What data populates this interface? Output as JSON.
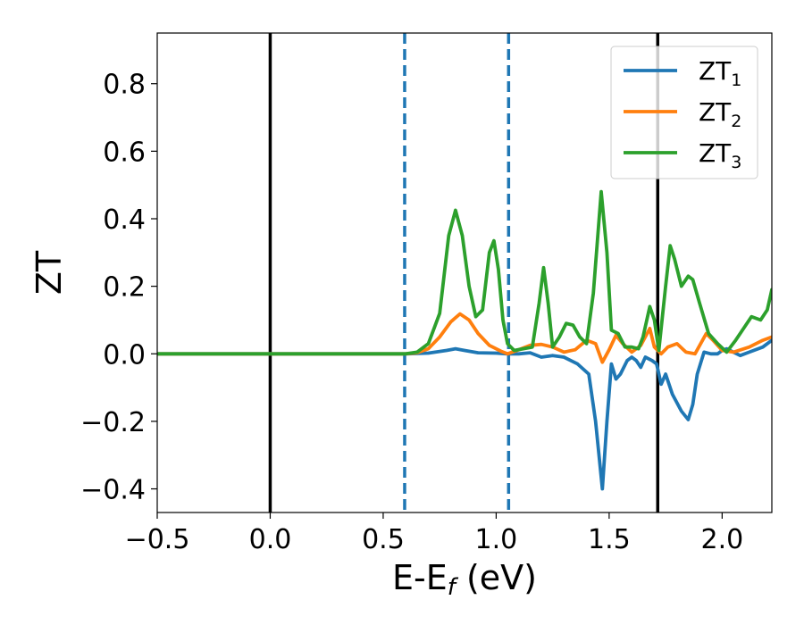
{
  "chart_data": {
    "type": "line",
    "title": "",
    "xlabel": "E-E_f (eV)",
    "xlabel_main": "E-E",
    "xlabel_sub": "f",
    "xlabel_rest": " (eV)",
    "ylabel": "ZT",
    "xlim": [
      -0.5,
      2.22
    ],
    "ylim": [
      -0.47,
      0.95
    ],
    "xticks": [
      -0.5,
      0.0,
      0.5,
      1.0,
      1.5,
      2.0
    ],
    "xtick_labels": [
      "−0.5",
      "0.0",
      "0.5",
      "1.0",
      "1.5",
      "2.0"
    ],
    "yticks": [
      -0.4,
      -0.2,
      0.0,
      0.2,
      0.4,
      0.6,
      0.8
    ],
    "ytick_labels": [
      "−0.4",
      "−0.2",
      "0.0",
      "0.2",
      "0.4",
      "0.6",
      "0.8"
    ],
    "grid": false,
    "legend_position": "top-right",
    "vertical_lines": [
      {
        "x": 0.0,
        "style": "solid",
        "color": "#000000"
      },
      {
        "x": 0.595,
        "style": "dashed",
        "color": "#1f77b4"
      },
      {
        "x": 1.055,
        "style": "dashed",
        "color": "#1f77b4"
      },
      {
        "x": 1.715,
        "style": "solid",
        "color": "#000000"
      }
    ],
    "series": [
      {
        "name": "ZT1",
        "label_main": "ZT",
        "label_sub": "1",
        "color": "#1f77b4",
        "points": [
          [
            -0.5,
            0.0
          ],
          [
            0.6,
            0.0
          ],
          [
            0.7,
            0.002
          ],
          [
            0.78,
            0.01
          ],
          [
            0.82,
            0.015
          ],
          [
            0.86,
            0.01
          ],
          [
            0.92,
            0.003
          ],
          [
            1.0,
            0.002
          ],
          [
            1.05,
            0.0
          ],
          [
            1.1,
            0.0
          ],
          [
            1.15,
            0.003
          ],
          [
            1.2,
            -0.01
          ],
          [
            1.25,
            -0.005
          ],
          [
            1.3,
            -0.01
          ],
          [
            1.36,
            -0.03
          ],
          [
            1.41,
            -0.06
          ],
          [
            1.44,
            -0.2
          ],
          [
            1.47,
            -0.4
          ],
          [
            1.49,
            -0.2
          ],
          [
            1.51,
            -0.03
          ],
          [
            1.53,
            -0.075
          ],
          [
            1.55,
            -0.06
          ],
          [
            1.58,
            -0.02
          ],
          [
            1.6,
            -0.01
          ],
          [
            1.62,
            -0.02
          ],
          [
            1.64,
            -0.04
          ],
          [
            1.66,
            -0.01
          ],
          [
            1.69,
            -0.02
          ],
          [
            1.71,
            -0.03
          ],
          [
            1.73,
            -0.09
          ],
          [
            1.75,
            -0.06
          ],
          [
            1.78,
            -0.12
          ],
          [
            1.82,
            -0.17
          ],
          [
            1.85,
            -0.195
          ],
          [
            1.87,
            -0.15
          ],
          [
            1.89,
            -0.06
          ],
          [
            1.92,
            0.005
          ],
          [
            1.95,
            0.0
          ],
          [
            1.98,
            0.0
          ],
          [
            2.0,
            0.01
          ],
          [
            2.02,
            0.015
          ],
          [
            2.05,
            0.005
          ],
          [
            2.08,
            -0.005
          ],
          [
            2.12,
            0.005
          ],
          [
            2.18,
            0.02
          ],
          [
            2.22,
            0.04
          ]
        ]
      },
      {
        "name": "ZT2",
        "label_main": "ZT",
        "label_sub": "2",
        "color": "#ff7f0e",
        "points": [
          [
            -0.5,
            0.0
          ],
          [
            0.6,
            0.0
          ],
          [
            0.65,
            0.003
          ],
          [
            0.7,
            0.015
          ],
          [
            0.75,
            0.05
          ],
          [
            0.8,
            0.095
          ],
          [
            0.84,
            0.118
          ],
          [
            0.88,
            0.1
          ],
          [
            0.92,
            0.06
          ],
          [
            0.97,
            0.025
          ],
          [
            1.02,
            0.008
          ],
          [
            1.05,
            0.0
          ],
          [
            1.1,
            0.012
          ],
          [
            1.15,
            0.025
          ],
          [
            1.2,
            0.028
          ],
          [
            1.25,
            0.02
          ],
          [
            1.3,
            0.005
          ],
          [
            1.35,
            0.012
          ],
          [
            1.4,
            0.04
          ],
          [
            1.44,
            0.03
          ],
          [
            1.47,
            -0.025
          ],
          [
            1.5,
            0.012
          ],
          [
            1.53,
            0.055
          ],
          [
            1.56,
            0.03
          ],
          [
            1.6,
            0.005
          ],
          [
            1.64,
            0.025
          ],
          [
            1.68,
            0.075
          ],
          [
            1.7,
            0.02
          ],
          [
            1.73,
            0.0
          ],
          [
            1.76,
            0.02
          ],
          [
            1.8,
            0.03
          ],
          [
            1.84,
            0.005
          ],
          [
            1.88,
            0.0
          ],
          [
            1.93,
            0.06
          ],
          [
            1.96,
            0.04
          ],
          [
            2.0,
            0.01
          ],
          [
            2.05,
            0.005
          ],
          [
            2.12,
            0.02
          ],
          [
            2.18,
            0.04
          ],
          [
            2.22,
            0.05
          ]
        ]
      },
      {
        "name": "ZT3",
        "label_main": "ZT",
        "label_sub": "3",
        "color": "#2ca02c",
        "points": [
          [
            -0.5,
            0.0
          ],
          [
            0.6,
            0.0
          ],
          [
            0.65,
            0.005
          ],
          [
            0.7,
            0.03
          ],
          [
            0.75,
            0.12
          ],
          [
            0.79,
            0.35
          ],
          [
            0.82,
            0.425
          ],
          [
            0.85,
            0.35
          ],
          [
            0.88,
            0.2
          ],
          [
            0.91,
            0.11
          ],
          [
            0.94,
            0.13
          ],
          [
            0.97,
            0.3
          ],
          [
            0.99,
            0.335
          ],
          [
            1.01,
            0.25
          ],
          [
            1.03,
            0.1
          ],
          [
            1.05,
            0.03
          ],
          [
            1.08,
            0.01
          ],
          [
            1.12,
            0.015
          ],
          [
            1.16,
            0.02
          ],
          [
            1.19,
            0.15
          ],
          [
            1.21,
            0.255
          ],
          [
            1.23,
            0.15
          ],
          [
            1.25,
            0.02
          ],
          [
            1.28,
            0.05
          ],
          [
            1.31,
            0.09
          ],
          [
            1.34,
            0.085
          ],
          [
            1.37,
            0.05
          ],
          [
            1.4,
            0.03
          ],
          [
            1.43,
            0.18
          ],
          [
            1.465,
            0.48
          ],
          [
            1.49,
            0.3
          ],
          [
            1.51,
            0.07
          ],
          [
            1.54,
            0.06
          ],
          [
            1.57,
            0.02
          ],
          [
            1.6,
            0.02
          ],
          [
            1.63,
            0.015
          ],
          [
            1.65,
            0.05
          ],
          [
            1.68,
            0.14
          ],
          [
            1.7,
            0.1
          ],
          [
            1.72,
            0.01
          ],
          [
            1.75,
            0.2
          ],
          [
            1.77,
            0.32
          ],
          [
            1.79,
            0.28
          ],
          [
            1.82,
            0.2
          ],
          [
            1.85,
            0.23
          ],
          [
            1.87,
            0.22
          ],
          [
            1.9,
            0.15
          ],
          [
            1.94,
            0.06
          ],
          [
            1.98,
            0.03
          ],
          [
            2.02,
            0.005
          ],
          [
            2.06,
            0.04
          ],
          [
            2.1,
            0.08
          ],
          [
            2.13,
            0.11
          ],
          [
            2.17,
            0.1
          ],
          [
            2.2,
            0.13
          ],
          [
            2.22,
            0.19
          ]
        ]
      }
    ]
  }
}
